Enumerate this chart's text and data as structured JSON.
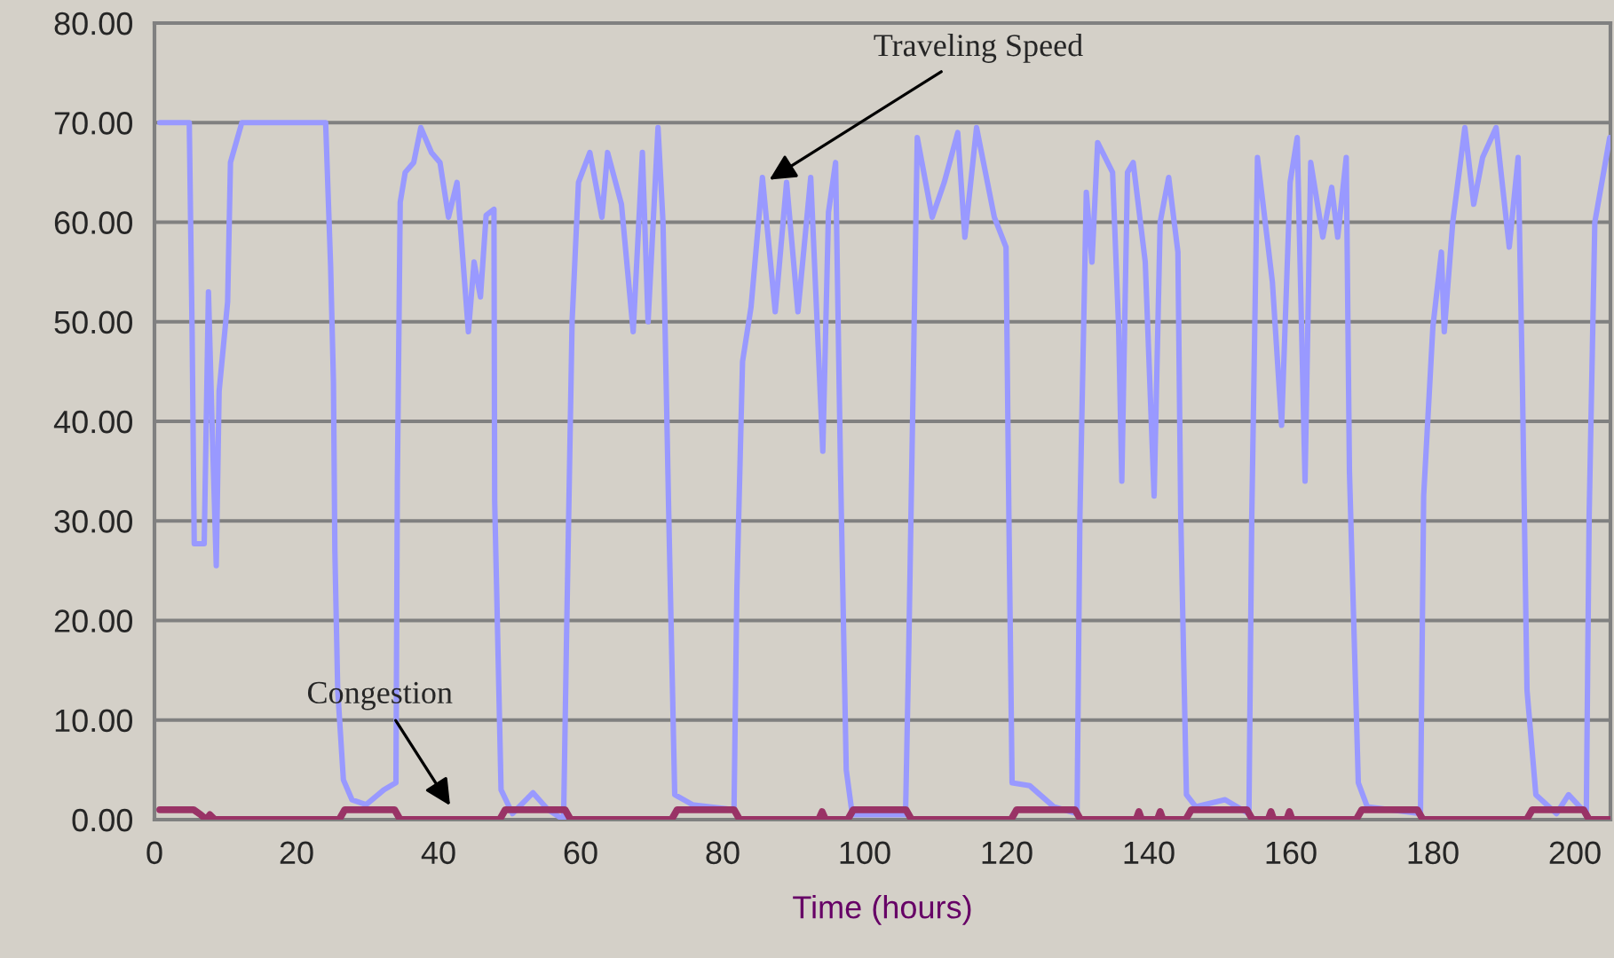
{
  "chart_data": {
    "type": "line",
    "xlabel": "Time (hours)",
    "xlim": [
      0,
      205
    ],
    "xticks": [
      0,
      20,
      40,
      60,
      80,
      100,
      120,
      140,
      160,
      180,
      200
    ],
    "ylim": [
      0,
      80
    ],
    "yticks": [
      {
        "value": 0,
        "label": "0.00"
      },
      {
        "value": 10,
        "label": "10.00"
      },
      {
        "value": 20,
        "label": "20.00"
      },
      {
        "value": 30,
        "label": "30.00"
      },
      {
        "value": 40,
        "label": "40.00"
      },
      {
        "value": 50,
        "label": "50.00"
      },
      {
        "value": 60,
        "label": "60.00"
      },
      {
        "value": 70,
        "label": "70.00"
      },
      {
        "value": 80,
        "label": "80.00"
      }
    ],
    "grid": "y",
    "legend": false,
    "line_style": "solid",
    "marker": "none",
    "annotations": [
      {
        "text": "Traveling Speed",
        "x": 86,
        "y": 64
      },
      {
        "text": "Congestion",
        "x": 42,
        "y": 1
      }
    ],
    "series": [
      {
        "color": "#9999ff",
        "x": [
          0.75,
          4.9,
          5.3,
          5.6,
          7,
          7.6,
          8.1,
          8.7,
          9.1,
          10.3,
          10.7,
          12.3,
          24.1,
          24.8,
          25.2,
          25.4,
          25.8,
          26.6,
          27.8,
          29.8,
          32.3,
          34,
          34.2,
          34.6,
          35.3,
          36.5,
          37.5,
          39,
          40.2,
          41.4,
          42.6,
          44.2,
          45,
          45.9,
          46.7,
          47.8,
          47.9,
          48.8,
          50.4,
          53.3,
          55.4,
          57.6,
          58,
          58.8,
          59.7,
          61.3,
          63,
          63.8,
          65.75,
          67.4,
          68.7,
          69.5,
          70.9,
          71.6,
          72.4,
          73.25,
          75.75,
          81.6,
          82,
          82.8,
          84,
          85.6,
          87.4,
          89,
          90.6,
          92.4,
          94.1,
          94.9,
          95.9,
          96.6,
          97.4,
          98.25,
          105.75,
          106.2,
          107.4,
          109.5,
          111.2,
          113.1,
          114.1,
          115.75,
          118.25,
          119.9,
          120.3,
          120.75,
          123.25,
          126.6,
          129.9,
          130.3,
          131.2,
          132,
          132.8,
          134.9,
          135.75,
          136.2,
          137,
          137.8,
          139.5,
          140.75,
          141.6,
          142.8,
          144.1,
          144.5,
          145.3,
          146.6,
          150.75,
          154.1,
          154.5,
          155.3,
          157.4,
          158.7,
          159.9,
          160.9,
          162,
          162.8,
          164.5,
          165.75,
          166.6,
          167.8,
          168.25,
          169.5,
          170.75,
          178.25,
          178.7,
          180,
          181.2,
          181.6,
          182.8,
          184.5,
          185.75,
          187,
          188.9,
          190.75,
          192,
          192.6,
          193.25,
          194.5,
          197.4,
          199.1,
          201.6,
          202,
          202.8,
          204.9
        ],
        "values": [
          70,
          70,
          48.9,
          27.7,
          27.7,
          53,
          40,
          25.5,
          43,
          52,
          66,
          70,
          70,
          55.6,
          44,
          27,
          13,
          4,
          2,
          1.5,
          3,
          3.7,
          34,
          62,
          65,
          66,
          69.5,
          67,
          66,
          60.5,
          64,
          49,
          56,
          52.5,
          60.7,
          61.3,
          32,
          3,
          0.6,
          2.7,
          1,
          0,
          17.5,
          50,
          64,
          67,
          60.5,
          67,
          61.8,
          49,
          67,
          50,
          69.5,
          60,
          31,
          2.5,
          1.5,
          1,
          23,
          46,
          51.5,
          64.5,
          51,
          64,
          51,
          64.5,
          37,
          61,
          66,
          35,
          5,
          0.5,
          0.5,
          17,
          68.5,
          60.5,
          64,
          69,
          58.5,
          69.5,
          60.5,
          57.5,
          30.5,
          3.7,
          3.4,
          1.3,
          0.6,
          30.5,
          63,
          56,
          68,
          65,
          49.5,
          34,
          65,
          66,
          56,
          32.5,
          60,
          64.5,
          57,
          30.5,
          2.5,
          1.3,
          2,
          0.6,
          30.5,
          66.5,
          54,
          39.6,
          64,
          68.5,
          34,
          66,
          58.5,
          63.5,
          58.5,
          66.5,
          35,
          3.7,
          1.3,
          0.6,
          32.5,
          49.5,
          57,
          49,
          60,
          69.5,
          61.8,
          66.5,
          69.5,
          57.5,
          66.5,
          44,
          13,
          2.5,
          0.6,
          2.5,
          0.6,
          30.5,
          60,
          68.5
        ]
      },
      {
        "color": "#993366",
        "x": [
          0.75,
          5.5,
          6.5,
          7.3,
          7.8,
          8.5,
          26,
          26.8,
          33.8,
          34.6,
          48.6,
          49.4,
          57.8,
          58.6,
          72.8,
          73.6,
          81.6,
          82.4,
          93.5,
          94,
          94.5,
          97.6,
          98.4,
          105.8,
          106.6,
          120.6,
          121.4,
          129.6,
          130.4,
          138.2,
          138.6,
          139,
          141.2,
          141.6,
          142,
          145.2,
          146,
          153.8,
          154.6,
          156.8,
          157.2,
          157.6,
          159.4,
          159.8,
          160.2,
          169.2,
          170,
          177.8,
          178.6,
          193.2,
          194,
          201.2,
          202,
          205
        ],
        "values": [
          1,
          1,
          0.5,
          0,
          0.5,
          0,
          0,
          1,
          1,
          0,
          0,
          1,
          1,
          0,
          0,
          1,
          1,
          0,
          0,
          0.8,
          0,
          0,
          1,
          1,
          0,
          0,
          1,
          1,
          0,
          0,
          0.8,
          0,
          0,
          0.8,
          0,
          0,
          1,
          1,
          0,
          0,
          0.8,
          0,
          0,
          0.8,
          0,
          0,
          1,
          1,
          0,
          0,
          1,
          1,
          0,
          0
        ]
      }
    ]
  }
}
